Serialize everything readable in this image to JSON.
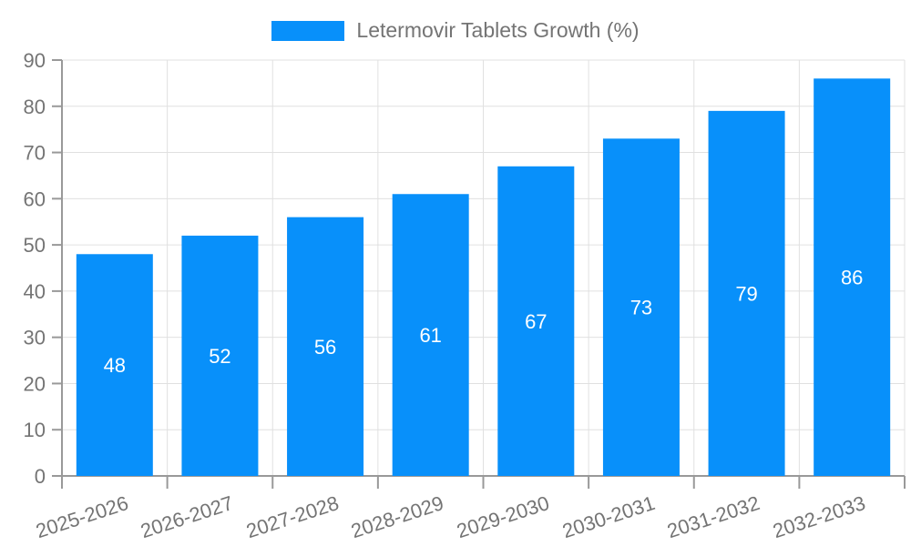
{
  "chart_data": {
    "type": "bar",
    "title": "",
    "legend": {
      "label": "Letermovir Tablets Growth (%)",
      "position": "top-center"
    },
    "categories": [
      "2025-2026",
      "2026-2027",
      "2027-2028",
      "2028-2029",
      "2029-2030",
      "2030-2031",
      "2031-2032",
      "2032-2033"
    ],
    "series": [
      {
        "name": "Letermovir Tablets Growth (%)",
        "values": [
          48,
          52,
          56,
          61,
          67,
          73,
          79,
          86
        ]
      }
    ],
    "xlabel": "",
    "ylabel": "",
    "ylim": [
      0,
      90
    ],
    "ytick_interval": 10,
    "ytick_labels": [
      "0",
      "10",
      "20",
      "30",
      "40",
      "50",
      "60",
      "70",
      "80",
      "90"
    ],
    "grid": true,
    "x_labels_rotation_deg": -18,
    "bar_value_labels_inside": true,
    "colors": {
      "bar": "#0890fa",
      "bar_label": "#ffffff",
      "axis": "#999999",
      "grid": "#e0e0e0",
      "text": "#747474"
    }
  }
}
